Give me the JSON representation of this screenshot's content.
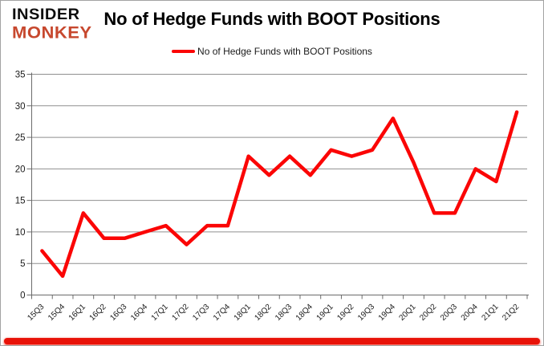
{
  "logo": {
    "line1": "INSIDER",
    "line2": "MONKEY"
  },
  "header": {
    "title": "No of Hedge Funds with BOOT Positions"
  },
  "legend": {
    "label": "No of Hedge Funds with BOOT Positions"
  },
  "colors": {
    "line": "#fb0505",
    "logo_red": "#c7482e",
    "grid": "#8f8f8f",
    "axis": "#6b6b6b",
    "tick_label": "#1a1a1a",
    "bottom_bar": "#e81208"
  },
  "chart_data": {
    "type": "line",
    "title": "No of Hedge Funds with BOOT Positions",
    "categories": [
      "15Q3",
      "15Q4",
      "16Q1",
      "16Q2",
      "16Q3",
      "16Q4",
      "17Q1",
      "17Q2",
      "17Q3",
      "17Q4",
      "18Q1",
      "18Q2",
      "18Q3",
      "18Q4",
      "19Q1",
      "19Q2",
      "19Q3",
      "19Q4",
      "20Q1",
      "20Q2",
      "20Q3",
      "20Q4",
      "21Q1",
      "21Q2"
    ],
    "values": [
      7,
      3,
      13,
      9,
      9,
      10,
      11,
      8,
      11,
      11,
      22,
      19,
      22,
      19,
      23,
      22,
      23,
      28,
      21,
      13,
      13,
      20,
      18,
      29
    ],
    "series_name": "No of Hedge Funds with BOOT Positions",
    "xlabel": "",
    "ylabel": "",
    "ylim": [
      0,
      35
    ],
    "yticks": [
      0,
      5,
      10,
      15,
      20,
      25,
      30,
      35
    ],
    "grid": true,
    "legend_position": "top"
  }
}
